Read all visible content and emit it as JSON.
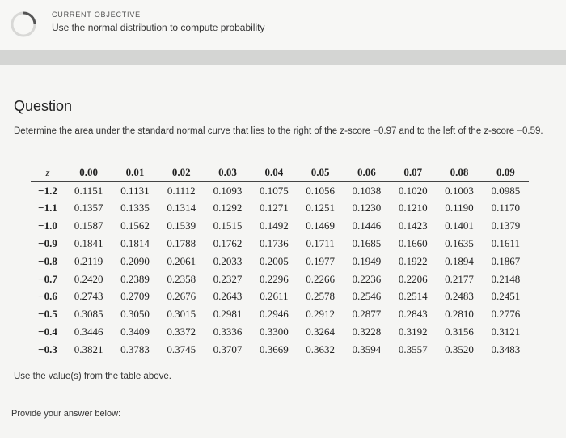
{
  "objective": {
    "kicker": "CURRENT OBJECTIVE",
    "text": "Use the normal distribution to compute probability",
    "icon": "progress-ring-icon"
  },
  "question": {
    "title": "Question",
    "prompt": "Determine the area under the standard normal curve that lies to the right of the z-score −0.97 and to the left of the z-score −0.59.",
    "use_values": "Use the value(s) from the table above.",
    "provide": "Provide your answer below:"
  },
  "table": {
    "z_header": "z",
    "columns": [
      "0.00",
      "0.01",
      "0.02",
      "0.03",
      "0.04",
      "0.05",
      "0.06",
      "0.07",
      "0.08",
      "0.09"
    ],
    "rows": [
      {
        "z": "−1.2",
        "values": [
          "0.1151",
          "0.1131",
          "0.1112",
          "0.1093",
          "0.1075",
          "0.1056",
          "0.1038",
          "0.1020",
          "0.1003",
          "0.0985"
        ]
      },
      {
        "z": "−1.1",
        "values": [
          "0.1357",
          "0.1335",
          "0.1314",
          "0.1292",
          "0.1271",
          "0.1251",
          "0.1230",
          "0.1210",
          "0.1190",
          "0.1170"
        ]
      },
      {
        "z": "−1.0",
        "values": [
          "0.1587",
          "0.1562",
          "0.1539",
          "0.1515",
          "0.1492",
          "0.1469",
          "0.1446",
          "0.1423",
          "0.1401",
          "0.1379"
        ]
      },
      {
        "z": "−0.9",
        "values": [
          "0.1841",
          "0.1814",
          "0.1788",
          "0.1762",
          "0.1736",
          "0.1711",
          "0.1685",
          "0.1660",
          "0.1635",
          "0.1611"
        ]
      },
      {
        "z": "−0.8",
        "values": [
          "0.2119",
          "0.2090",
          "0.2061",
          "0.2033",
          "0.2005",
          "0.1977",
          "0.1949",
          "0.1922",
          "0.1894",
          "0.1867"
        ]
      },
      {
        "z": "−0.7",
        "values": [
          "0.2420",
          "0.2389",
          "0.2358",
          "0.2327",
          "0.2296",
          "0.2266",
          "0.2236",
          "0.2206",
          "0.2177",
          "0.2148"
        ]
      },
      {
        "z": "−0.6",
        "values": [
          "0.2743",
          "0.2709",
          "0.2676",
          "0.2643",
          "0.2611",
          "0.2578",
          "0.2546",
          "0.2514",
          "0.2483",
          "0.2451"
        ]
      },
      {
        "z": "−0.5",
        "values": [
          "0.3085",
          "0.3050",
          "0.3015",
          "0.2981",
          "0.2946",
          "0.2912",
          "0.2877",
          "0.2843",
          "0.2810",
          "0.2776"
        ]
      },
      {
        "z": "−0.4",
        "values": [
          "0.3446",
          "0.3409",
          "0.3372",
          "0.3336",
          "0.3300",
          "0.3264",
          "0.3228",
          "0.3192",
          "0.3156",
          "0.3121"
        ]
      },
      {
        "z": "−0.3",
        "values": [
          "0.3821",
          "0.3783",
          "0.3745",
          "0.3707",
          "0.3669",
          "0.3632",
          "0.3594",
          "0.3557",
          "0.3520",
          "0.3483"
        ]
      }
    ]
  }
}
